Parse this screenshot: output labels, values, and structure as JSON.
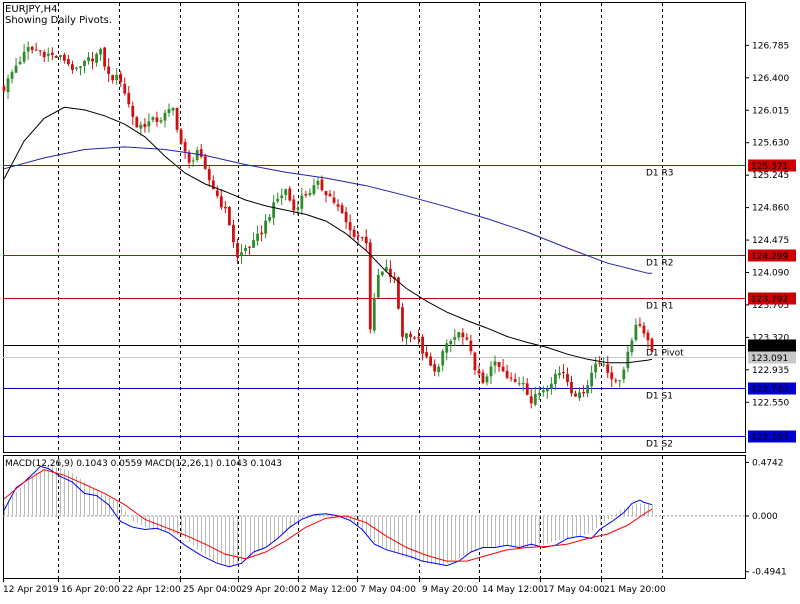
{
  "header": {
    "symbol": "EURJPY,H4",
    "indicator_note": "Showing Daily Pivots."
  },
  "colors": {
    "bull": "#2e8b2e",
    "bear": "#d01010",
    "ma_fast": "#000000",
    "ma_slow": "#2222aa",
    "resistance": "#cc0000",
    "support": "#0000cc",
    "pivot": "#000000",
    "macd_line": "#0000ff",
    "signal_line": "#ff0000",
    "histogram": "#bbbbbb"
  },
  "chart_data": [
    {
      "type": "candlestick",
      "title": "EURJPY,H4",
      "subtitle": "Showing Daily Pivots.",
      "x_tick_labels": [
        "12 Apr 2019",
        "16 Apr 20:00",
        "22 Apr 12:00",
        "25 Apr 04:00",
        "29 Apr 20:00",
        "2 May 12:00",
        "7 May 04:00",
        "9 May 20:00",
        "14 May 12:00",
        "17 May 04:00",
        "21 May 20:00"
      ],
      "y_tick_labels": [
        "126.785",
        "126.400",
        "126.015",
        "125.630",
        "125.245",
        "124.860",
        "124.475",
        "124.090",
        "123.705",
        "123.320",
        "122.935",
        "122.550"
      ],
      "ylim": [
        121.96,
        127.11
      ],
      "grid": true,
      "current_price_label": "123.091",
      "pivot_levels": [
        {
          "label": "D1 R3",
          "value": 125.371,
          "tag": "125.371",
          "kind": "resistance"
        },
        {
          "label": "D1 R2",
          "value": 124.299,
          "tag": "124.299",
          "kind": "resistance"
        },
        {
          "label": "D1 R1",
          "value": 123.792,
          "tag": "123.792",
          "kind": "resistance"
        },
        {
          "label": "D1 Pivot",
          "value": 123.227,
          "tag": "123.227",
          "kind": "pivot"
        },
        {
          "label": "D1 S1",
          "value": 122.72,
          "tag": "122.720",
          "kind": "support"
        },
        {
          "label": "D1 S2",
          "value": 122.155,
          "tag": "122.155",
          "kind": "support"
        }
      ],
      "close_path": [
        [
          0,
          126.28
        ],
        [
          3,
          126.55
        ],
        [
          6,
          126.74
        ],
        [
          9,
          126.71
        ],
        [
          12,
          126.66
        ],
        [
          15,
          126.62
        ],
        [
          18,
          126.47
        ],
        [
          21,
          126.61
        ],
        [
          24,
          126.7
        ],
        [
          26,
          126.42
        ],
        [
          29,
          126.38
        ],
        [
          31,
          126.08
        ],
        [
          33,
          125.82
        ],
        [
          36,
          125.87
        ],
        [
          39,
          125.92
        ],
        [
          42,
          126.03
        ],
        [
          44,
          125.62
        ],
        [
          46,
          125.37
        ],
        [
          48,
          125.55
        ],
        [
          50,
          125.28
        ],
        [
          53,
          125.0
        ],
        [
          55,
          124.81
        ],
        [
          56,
          124.67
        ],
        [
          58,
          124.26
        ],
        [
          60,
          124.38
        ],
        [
          62,
          124.43
        ],
        [
          64,
          124.58
        ],
        [
          66,
          124.79
        ],
        [
          68,
          124.96
        ],
        [
          70,
          125.07
        ],
        [
          72,
          124.83
        ],
        [
          74,
          124.98
        ],
        [
          76,
          125.06
        ],
        [
          78,
          125.13
        ],
        [
          80,
          125.05
        ],
        [
          82,
          124.93
        ],
        [
          84,
          124.77
        ],
        [
          86,
          124.58
        ],
        [
          88,
          124.52
        ],
        [
          90,
          124.47
        ],
        [
          91,
          123.44
        ],
        [
          93,
          124.05
        ],
        [
          95,
          124.12
        ],
        [
          97,
          123.98
        ],
        [
          99,
          123.35
        ],
        [
          101,
          123.37
        ],
        [
          103,
          123.27
        ],
        [
          105,
          123.05
        ],
        [
          107,
          122.89
        ],
        [
          109,
          123.14
        ],
        [
          111,
          123.27
        ],
        [
          113,
          123.37
        ],
        [
          115,
          123.25
        ],
        [
          117,
          122.98
        ],
        [
          119,
          122.74
        ],
        [
          121,
          123.01
        ],
        [
          123,
          122.96
        ],
        [
          125,
          122.83
        ],
        [
          127,
          122.78
        ],
        [
          129,
          122.81
        ],
        [
          131,
          122.55
        ],
        [
          133,
          122.67
        ],
        [
          135,
          122.76
        ],
        [
          137,
          122.88
        ],
        [
          139,
          122.91
        ],
        [
          141,
          122.7
        ],
        [
          143,
          122.62
        ],
        [
          145,
          122.78
        ],
        [
          147,
          123.01
        ],
        [
          149,
          123.04
        ],
        [
          151,
          122.78
        ],
        [
          153,
          122.84
        ],
        [
          155,
          123.1
        ],
        [
          157,
          123.5
        ],
        [
          159,
          123.41
        ],
        [
          161,
          123.16
        ]
      ],
      "ma_fast": [
        [
          0,
          125.2
        ],
        [
          5,
          125.65
        ],
        [
          10,
          125.92
        ],
        [
          15,
          126.05
        ],
        [
          20,
          126.02
        ],
        [
          25,
          125.95
        ],
        [
          30,
          125.85
        ],
        [
          35,
          125.7
        ],
        [
          40,
          125.47
        ],
        [
          45,
          125.27
        ],
        [
          50,
          125.14
        ],
        [
          55,
          125.05
        ],
        [
          60,
          124.95
        ],
        [
          65,
          124.88
        ],
        [
          70,
          124.83
        ],
        [
          75,
          124.78
        ],
        [
          80,
          124.7
        ],
        [
          85,
          124.55
        ],
        [
          90,
          124.35
        ],
        [
          95,
          124.1
        ],
        [
          100,
          123.9
        ],
        [
          105,
          123.75
        ],
        [
          110,
          123.62
        ],
        [
          115,
          123.52
        ],
        [
          120,
          123.43
        ],
        [
          125,
          123.33
        ],
        [
          130,
          123.26
        ],
        [
          135,
          123.2
        ],
        [
          140,
          123.12
        ],
        [
          145,
          123.06
        ],
        [
          150,
          123.02
        ],
        [
          155,
          123.02
        ],
        [
          160,
          123.05
        ],
        [
          161,
          123.06
        ]
      ],
      "ma_slow": [
        [
          0,
          125.32
        ],
        [
          10,
          125.45
        ],
        [
          20,
          125.55
        ],
        [
          30,
          125.58
        ],
        [
          40,
          125.55
        ],
        [
          50,
          125.48
        ],
        [
          60,
          125.37
        ],
        [
          70,
          125.28
        ],
        [
          80,
          125.21
        ],
        [
          90,
          125.12
        ],
        [
          100,
          125.0
        ],
        [
          110,
          124.87
        ],
        [
          120,
          124.73
        ],
        [
          130,
          124.57
        ],
        [
          140,
          124.38
        ],
        [
          150,
          124.2
        ],
        [
          160,
          124.08
        ],
        [
          161,
          124.08
        ]
      ]
    },
    {
      "type": "line",
      "title": "MACD(12,26,9) 0.1043 0.0559 MACD(12,26,1) 0.1043 0.1043",
      "y_tick_labels": [
        "0.4742",
        "0.000",
        "-0.4941"
      ],
      "ylim": [
        -0.55,
        0.54
      ],
      "series": [
        {
          "color": "#0000ff",
          "values": [
            [
              0,
              0.05
            ],
            [
              3,
              0.25
            ],
            [
              5,
              0.3
            ],
            [
              8,
              0.4
            ],
            [
              9,
              0.44
            ],
            [
              11,
              0.42
            ],
            [
              14,
              0.35
            ],
            [
              17,
              0.3
            ],
            [
              20,
              0.2
            ],
            [
              23,
              0.18
            ],
            [
              26,
              0.1
            ],
            [
              29,
              -0.05
            ],
            [
              32,
              -0.1
            ],
            [
              35,
              -0.12
            ],
            [
              38,
              -0.11
            ],
            [
              41,
              -0.15
            ],
            [
              45,
              -0.26
            ],
            [
              49,
              -0.35
            ],
            [
              53,
              -0.42
            ],
            [
              56,
              -0.45
            ],
            [
              59,
              -0.42
            ],
            [
              62,
              -0.32
            ],
            [
              65,
              -0.28
            ],
            [
              68,
              -0.2
            ],
            [
              71,
              -0.1
            ],
            [
              74,
              -0.03
            ],
            [
              77,
              0.01
            ],
            [
              80,
              0.02
            ],
            [
              83,
              0.0
            ],
            [
              86,
              -0.04
            ],
            [
              89,
              -0.12
            ],
            [
              92,
              -0.25
            ],
            [
              95,
              -0.3
            ],
            [
              98,
              -0.33
            ],
            [
              101,
              -0.36
            ],
            [
              104,
              -0.4
            ],
            [
              107,
              -0.42
            ],
            [
              110,
              -0.44
            ],
            [
              113,
              -0.4
            ],
            [
              116,
              -0.32
            ],
            [
              119,
              -0.28
            ],
            [
              122,
              -0.28
            ],
            [
              125,
              -0.26
            ],
            [
              128,
              -0.28
            ],
            [
              131,
              -0.25
            ],
            [
              134,
              -0.28
            ],
            [
              137,
              -0.26
            ],
            [
              140,
              -0.2
            ],
            [
              143,
              -0.18
            ],
            [
              146,
              -0.2
            ],
            [
              148,
              -0.12
            ],
            [
              151,
              -0.05
            ],
            [
              154,
              0.03
            ],
            [
              156,
              0.11
            ],
            [
              158,
              0.14
            ],
            [
              159,
              0.12
            ],
            [
              161,
              0.1
            ]
          ]
        },
        {
          "color": "#ff0000",
          "values": [
            [
              0,
              0.15
            ],
            [
              5,
              0.3
            ],
            [
              10,
              0.41
            ],
            [
              15,
              0.36
            ],
            [
              20,
              0.28
            ],
            [
              25,
              0.2
            ],
            [
              30,
              0.1
            ],
            [
              35,
              -0.03
            ],
            [
              40,
              -0.1
            ],
            [
              45,
              -0.17
            ],
            [
              50,
              -0.25
            ],
            [
              55,
              -0.34
            ],
            [
              60,
              -0.38
            ],
            [
              65,
              -0.32
            ],
            [
              70,
              -0.22
            ],
            [
              75,
              -0.1
            ],
            [
              80,
              -0.02
            ],
            [
              85,
              0.0
            ],
            [
              90,
              -0.06
            ],
            [
              95,
              -0.18
            ],
            [
              100,
              -0.28
            ],
            [
              105,
              -0.35
            ],
            [
              110,
              -0.4
            ],
            [
              115,
              -0.4
            ],
            [
              120,
              -0.35
            ],
            [
              125,
              -0.3
            ],
            [
              130,
              -0.28
            ],
            [
              135,
              -0.27
            ],
            [
              140,
              -0.25
            ],
            [
              145,
              -0.2
            ],
            [
              150,
              -0.16
            ],
            [
              155,
              -0.08
            ],
            [
              160,
              0.04
            ],
            [
              161,
              0.06
            ]
          ]
        }
      ],
      "histogram": [
        0.1,
        0.25,
        0.38,
        0.44,
        0.4,
        0.3,
        0.2,
        0.12,
        -0.05,
        -0.12,
        -0.13,
        -0.18,
        -0.3,
        -0.4,
        -0.45,
        -0.38,
        -0.28,
        -0.18,
        -0.06,
        0.01,
        0.02,
        -0.02,
        -0.1,
        -0.25,
        -0.32,
        -0.38,
        -0.42,
        -0.44,
        -0.38,
        -0.3,
        -0.28,
        -0.27,
        -0.28,
        -0.27,
        -0.22,
        -0.19,
        -0.16,
        -0.06,
        0.05,
        0.11,
        0.1
      ]
    }
  ]
}
